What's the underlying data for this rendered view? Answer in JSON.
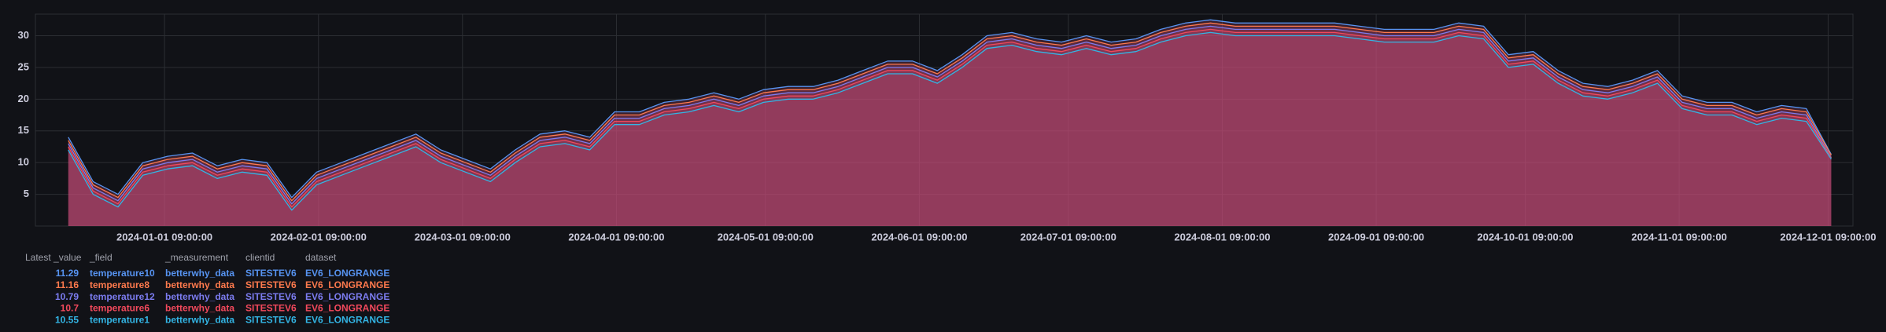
{
  "chart_data": {
    "type": "line",
    "x": [
      "2023-12-13",
      "2023-12-18",
      "2023-12-23",
      "2023-12-28",
      "2024-01-02",
      "2024-01-07",
      "2024-01-12",
      "2024-01-17",
      "2024-01-22",
      "2024-01-27",
      "2024-02-01",
      "2024-02-06",
      "2024-02-11",
      "2024-02-16",
      "2024-02-21",
      "2024-02-26",
      "2024-03-02",
      "2024-03-07",
      "2024-03-12",
      "2024-03-17",
      "2024-03-22",
      "2024-03-27",
      "2024-04-01",
      "2024-04-06",
      "2024-04-11",
      "2024-04-16",
      "2024-04-21",
      "2024-04-26",
      "2024-05-01",
      "2024-05-06",
      "2024-05-11",
      "2024-05-16",
      "2024-05-21",
      "2024-05-26",
      "2024-05-31",
      "2024-06-05",
      "2024-06-10",
      "2024-06-15",
      "2024-06-20",
      "2024-06-25",
      "2024-06-30",
      "2024-07-05",
      "2024-07-10",
      "2024-07-15",
      "2024-07-20",
      "2024-07-25",
      "2024-07-30",
      "2024-08-04",
      "2024-08-09",
      "2024-08-14",
      "2024-08-19",
      "2024-08-24",
      "2024-08-29",
      "2024-09-03",
      "2024-09-08",
      "2024-09-13",
      "2024-09-18",
      "2024-09-23",
      "2024-09-28",
      "2024-10-03",
      "2024-10-08",
      "2024-10-13",
      "2024-10-18",
      "2024-10-23",
      "2024-10-28",
      "2024-11-02",
      "2024-11-07",
      "2024-11-12",
      "2024-11-17",
      "2024-11-22",
      "2024-11-27",
      "2024-12-02"
    ],
    "series": [
      {
        "name": "temperature10",
        "color": "#5794f2",
        "values": [
          14,
          7,
          5,
          10,
          11,
          11.5,
          9.5,
          10.5,
          10,
          4.5,
          8.5,
          10,
          11.5,
          13,
          14.5,
          12,
          10.5,
          9,
          12,
          14.5,
          15,
          14,
          18,
          18,
          19.5,
          20,
          21,
          20,
          21.5,
          22,
          22,
          23,
          24.5,
          26,
          26,
          24.5,
          27,
          30,
          30.5,
          29.5,
          29,
          30,
          29,
          29.5,
          31,
          32,
          32.5,
          32,
          32,
          32,
          32,
          32,
          31.5,
          31,
          31,
          31,
          32,
          31.5,
          27,
          27.5,
          24.5,
          22.5,
          22,
          23,
          24.5,
          20.5,
          19.5,
          19.5,
          18,
          19,
          18.5,
          11.29
        ]
      },
      {
        "name": "temperature8",
        "color": "#ff7a4d",
        "values": [
          13.5,
          6.5,
          4.5,
          9.5,
          10.5,
          11,
          9,
          10,
          9.5,
          4,
          8,
          9.5,
          11,
          12.5,
          14,
          11.5,
          10,
          8.5,
          11.5,
          14,
          14.5,
          13.5,
          17.5,
          17.5,
          19,
          19.5,
          20.5,
          19.5,
          21,
          21.5,
          21.5,
          22.5,
          24,
          25.5,
          25.5,
          24,
          26.5,
          29.5,
          30,
          29,
          28.5,
          29.5,
          28.5,
          29,
          30.5,
          31.5,
          32,
          31.5,
          31.5,
          31.5,
          31.5,
          31.5,
          31,
          30.5,
          30.5,
          30.5,
          31.5,
          31,
          26.5,
          27,
          24,
          22,
          21.5,
          22.5,
          24,
          20,
          19,
          19,
          17.5,
          18.5,
          18,
          11.16
        ]
      },
      {
        "name": "temperature12",
        "color": "#7c7cf0",
        "values": [
          13,
          6,
          4,
          9,
          10,
          10.5,
          8.5,
          9.5,
          9,
          3.5,
          7.5,
          9,
          10.5,
          12,
          13.5,
          11,
          9.5,
          8,
          11,
          13.5,
          14,
          13,
          17,
          17,
          18.5,
          19,
          20,
          19,
          20.5,
          21,
          21,
          22,
          23.5,
          25,
          25,
          23.5,
          26,
          29,
          29.5,
          28.5,
          28,
          29,
          28,
          28.5,
          30,
          31,
          31.5,
          31,
          31,
          31,
          31,
          31,
          30.5,
          30,
          30,
          30,
          31,
          30.5,
          26,
          26.5,
          23.5,
          21.5,
          21,
          22,
          23.5,
          19.5,
          18.5,
          18.5,
          17,
          18,
          17.5,
          10.79
        ]
      },
      {
        "name": "temperature6",
        "color": "#f2495c",
        "values": [
          12.5,
          5.5,
          3.5,
          8.5,
          9.5,
          10,
          8,
          9,
          8.5,
          3,
          7,
          8.5,
          10,
          11.5,
          13,
          10.5,
          9,
          7.5,
          10.5,
          13,
          13.5,
          12.5,
          16.5,
          16.5,
          18,
          18.5,
          19.5,
          18.5,
          20,
          20.5,
          20.5,
          21.5,
          23,
          24.5,
          24.5,
          23,
          25.5,
          28.5,
          29,
          28,
          27.5,
          28.5,
          27.5,
          28,
          29.5,
          30.5,
          31,
          30.5,
          30.5,
          30.5,
          30.5,
          30.5,
          30,
          29.5,
          29.5,
          29.5,
          30.5,
          30,
          25.5,
          26,
          23,
          21,
          20.5,
          21.5,
          23,
          19,
          18,
          18,
          16.5,
          17.5,
          17,
          10.7
        ]
      },
      {
        "name": "temperature1",
        "color": "#33b5e5",
        "values": [
          12,
          5,
          3,
          8,
          9,
          9.5,
          7.5,
          8.5,
          8,
          2.5,
          6.5,
          8,
          9.5,
          11,
          12.5,
          10,
          8.5,
          7,
          10,
          12.5,
          13,
          12,
          16,
          16,
          17.5,
          18,
          19,
          18,
          19.5,
          20,
          20,
          21,
          22.5,
          24,
          24,
          22.5,
          25,
          28,
          28.5,
          27.5,
          27,
          28,
          27,
          27.5,
          29,
          30,
          30.5,
          30,
          30,
          30,
          30,
          30,
          29.5,
          29,
          29,
          29,
          30,
          29.5,
          25,
          25.5,
          22.5,
          20.5,
          20,
          21,
          22.5,
          18.5,
          17.5,
          17.5,
          16,
          17,
          16.5,
          10.55
        ]
      }
    ],
    "fill_color": "#c94f7c",
    "xlim": [
      "2023-12-06 09:00:00",
      "2024-12-06 09:00:00"
    ],
    "xticks": [
      "2024-01-01 09:00:00",
      "2024-02-01 09:00:00",
      "2024-03-01 09:00:00",
      "2024-04-01 09:00:00",
      "2024-05-01 09:00:00",
      "2024-06-01 09:00:00",
      "2024-07-01 09:00:00",
      "2024-08-01 09:00:00",
      "2024-09-01 09:00:00",
      "2024-10-01 09:00:00",
      "2024-11-01 09:00:00",
      "2024-12-01 09:00:00"
    ],
    "ylim": [
      0,
      33.4
    ],
    "yticks": [
      5,
      10,
      15,
      20,
      25,
      30
    ],
    "grid": true
  },
  "legend_table": {
    "headers": [
      "Latest _value",
      "_field",
      "_measurement",
      "clientid",
      "dataset"
    ],
    "rows": [
      [
        11.29,
        "temperature10",
        "betterwhy_data",
        "SITESTEV6",
        "EV6_LONGRANGE"
      ],
      [
        11.16,
        "temperature8",
        "betterwhy_data",
        "SITESTEV6",
        "EV6_LONGRANGE"
      ],
      [
        10.79,
        "temperature12",
        "betterwhy_data",
        "SITESTEV6",
        "EV6_LONGRANGE"
      ],
      [
        10.7,
        "temperature6",
        "betterwhy_data",
        "SITESTEV6",
        "EV6_LONGRANGE"
      ],
      [
        10.55,
        "temperature1",
        "betterwhy_data",
        "SITESTEV6",
        "EV6_LONGRANGE"
      ]
    ]
  }
}
